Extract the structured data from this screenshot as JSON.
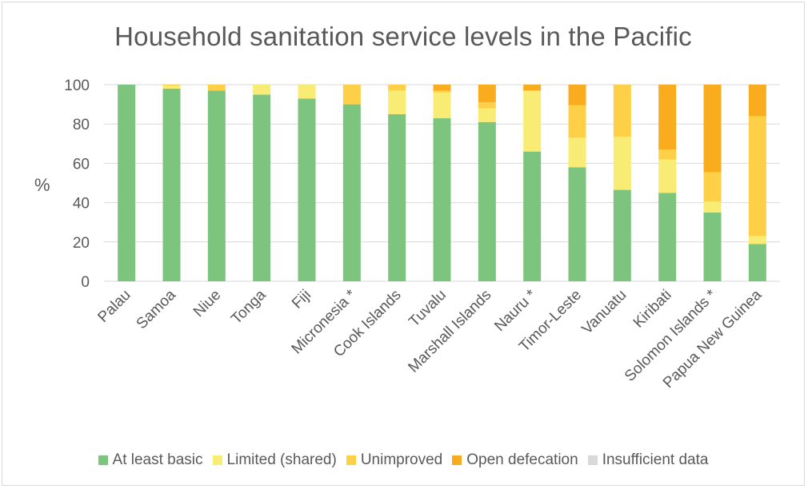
{
  "chart_data": {
    "type": "bar",
    "stacked": true,
    "title": "Household sanitation service levels in the Pacific",
    "xlabel": "",
    "ylabel": "%",
    "ylim": [
      0,
      100
    ],
    "yticks": [
      0,
      20,
      40,
      60,
      80,
      100
    ],
    "grid": true,
    "legend_position": "bottom",
    "categories": [
      "Palau",
      "Samoa",
      "Niue",
      "Tonga",
      "Fiji",
      "Micronesia *",
      "Cook Islands",
      "Tuvalu",
      "Marshall Islands",
      "Nauru *",
      "Timor-Leste",
      "Vanuatu",
      "Kiribati",
      "Solomon Islands *",
      "Papua New Guinea"
    ],
    "series": [
      {
        "name": "At least basic",
        "color": "#7dc47f",
        "values": [
          100,
          98,
          97,
          95,
          93,
          90,
          85,
          83,
          81,
          66,
          58,
          46.5,
          45,
          35,
          19
        ]
      },
      {
        "name": "Limited (shared)",
        "color": "#f9ec74",
        "values": [
          0,
          1.5,
          0,
          5,
          7,
          0,
          12,
          13,
          7,
          31,
          15,
          27,
          17,
          5.5,
          4
        ]
      },
      {
        "name": "Unimproved",
        "color": "#fdd047",
        "values": [
          0,
          0.5,
          3,
          0,
          0,
          10,
          3,
          1,
          3,
          0,
          16.5,
          26.5,
          5,
          15,
          61
        ]
      },
      {
        "name": "Open defecation",
        "color": "#f9ad1e",
        "values": [
          0,
          0,
          0,
          0,
          0,
          0,
          0,
          3,
          9,
          3,
          10.5,
          0,
          33,
          44.5,
          16
        ]
      },
      {
        "name": "Insufficient data",
        "color": "#d9d9d9",
        "values": [
          0,
          0,
          0,
          0,
          0,
          0,
          0,
          0,
          0,
          0,
          0,
          0,
          0,
          0,
          0
        ]
      }
    ]
  }
}
